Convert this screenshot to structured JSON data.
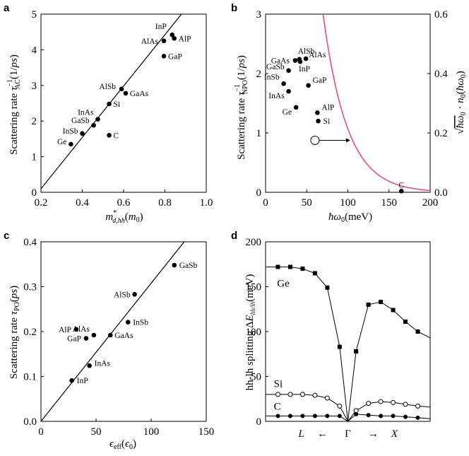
{
  "chart_data": [
    {
      "panel": "a",
      "type": "scatter",
      "xlabel": "m*_{d,hh}(m0)",
      "ylabel": "Scattering rate τ_AC^{-1}(1/ps)",
      "xlim": [
        0.2,
        1.0
      ],
      "ylim": [
        0,
        5
      ],
      "xticks": [
        "0.2",
        "0.4",
        "0.6",
        "0.8",
        "1.0"
      ],
      "yticks": [
        "0",
        "1",
        "2",
        "3",
        "4",
        "5"
      ],
      "fit_line": {
        "x": [
          0.2,
          0.88
        ],
        "y": [
          0.1,
          5.0
        ]
      },
      "points": [
        {
          "label": "InP",
          "x": 0.835,
          "y": 4.42
        },
        {
          "label": "AlP",
          "x": 0.845,
          "y": 4.32
        },
        {
          "label": "AlAs",
          "x": 0.795,
          "y": 4.25
        },
        {
          "label": "GaP",
          "x": 0.795,
          "y": 3.82
        },
        {
          "label": "AlSb",
          "x": 0.59,
          "y": 2.9
        },
        {
          "label": "GaAs",
          "x": 0.61,
          "y": 2.78
        },
        {
          "label": "Si",
          "x": 0.53,
          "y": 2.48
        },
        {
          "label": "InAs",
          "x": 0.475,
          "y": 2.05
        },
        {
          "label": "GaSb",
          "x": 0.455,
          "y": 1.88
        },
        {
          "label": "InSb",
          "x": 0.4,
          "y": 1.65
        },
        {
          "label": "C",
          "x": 0.53,
          "y": 1.6
        },
        {
          "label": "Ge",
          "x": 0.345,
          "y": 1.35
        }
      ]
    },
    {
      "panel": "b",
      "type": "scatter",
      "xlabel": "ħω0(meV)",
      "ylabel": "Scattering rate τ_NPO^{-1}(1/ps)",
      "ylabel_right": "√(ħω0)·n0(ħω0)",
      "xlim": [
        0,
        200
      ],
      "ylim": [
        0,
        3
      ],
      "ylim_right": [
        0,
        0.6
      ],
      "xticks": [
        "0",
        "50",
        "100",
        "150",
        "200"
      ],
      "yticks": [
        "0",
        "1",
        "2",
        "3"
      ],
      "yticks_right": [
        "0.0",
        "0.2",
        "0.4",
        "0.6"
      ],
      "curve": {
        "name": "√(ħω0)·n0(ħω0) at 300 K",
        "color": "#e8467c",
        "axis": "right"
      },
      "points": [
        {
          "label": "GaAs",
          "x": 36,
          "y": 2.22
        },
        {
          "label": "AlSb",
          "x": 41,
          "y": 2.24
        },
        {
          "label": "AlAs",
          "x": 49,
          "y": 2.25
        },
        {
          "label": "InP",
          "x": 42,
          "y": 2.2
        },
        {
          "label": "GaSb",
          "x": 28,
          "y": 2.05
        },
        {
          "label": "InSb",
          "x": 22,
          "y": 1.83
        },
        {
          "label": "GaP",
          "x": 52,
          "y": 1.8
        },
        {
          "label": "InAs",
          "x": 28,
          "y": 1.7
        },
        {
          "label": "Ge",
          "x": 37,
          "y": 1.43
        },
        {
          "label": "AlP",
          "x": 63,
          "y": 1.34
        },
        {
          "label": "Si",
          "x": 64,
          "y": 1.2
        },
        {
          "label": "C",
          "x": 165,
          "y": 0.02
        }
      ]
    },
    {
      "panel": "c",
      "type": "scatter",
      "xlabel": "ε_eff(ε0)",
      "ylabel": "Scattering rate τ_PO(ps)",
      "xlim": [
        0,
        150
      ],
      "ylim": [
        0,
        0.4
      ],
      "xticks": [
        "0",
        "50",
        "100",
        "150"
      ],
      "yticks": [
        "0.0",
        "0.1",
        "0.2",
        "0.3",
        "0.4"
      ],
      "fit_line": {
        "x": [
          0,
          130
        ],
        "y": [
          0.0,
          0.4
        ]
      },
      "points": [
        {
          "label": "GaSb",
          "x": 121,
          "y": 0.348
        },
        {
          "label": "AlSb",
          "x": 85,
          "y": 0.283
        },
        {
          "label": "InSb",
          "x": 79,
          "y": 0.221
        },
        {
          "label": "AlP",
          "x": 32,
          "y": 0.205
        },
        {
          "label": "AlAs",
          "x": 48,
          "y": 0.192
        },
        {
          "label": "GaAs",
          "x": 63,
          "y": 0.192
        },
        {
          "label": "GaP",
          "x": 41,
          "y": 0.185
        },
        {
          "label": "InAs",
          "x": 44,
          "y": 0.124
        },
        {
          "label": "InP",
          "x": 28,
          "y": 0.091
        }
      ]
    },
    {
      "panel": "d",
      "type": "line",
      "xlabel": "L ← Γ → X",
      "ylabel": "hh-lh splitting ΔE_hh/lh(meV)",
      "xlim": [
        -1,
        1
      ],
      "ylim": [
        0,
        200
      ],
      "yticks": [
        "0",
        "50",
        "100",
        "150",
        "200"
      ],
      "series": [
        {
          "name": "Ge",
          "marker": "square",
          "x": [
            -1,
            -0.85,
            -0.7,
            -0.55,
            -0.4,
            -0.25,
            -0.1,
            0,
            0.1,
            0.25,
            0.4,
            0.55,
            0.7,
            0.85,
            1
          ],
          "y": [
            172,
            172,
            172,
            170,
            165,
            149,
            83,
            0,
            78,
            130,
            133,
            124,
            111,
            100,
            93
          ]
        },
        {
          "name": "Si",
          "marker": "open-circle",
          "x": [
            -1,
            -0.85,
            -0.7,
            -0.55,
            -0.4,
            -0.25,
            -0.1,
            0,
            0.1,
            0.25,
            0.4,
            0.55,
            0.7,
            0.85,
            1
          ],
          "y": [
            30,
            30,
            30,
            30,
            29,
            26,
            17,
            0,
            12,
            20,
            22,
            21,
            19,
            17,
            16
          ]
        },
        {
          "name": "C",
          "marker": "filled-circle",
          "x": [
            -1,
            -0.85,
            -0.7,
            -0.55,
            -0.4,
            -0.25,
            -0.1,
            0,
            0.1,
            0.25,
            0.4,
            0.55,
            0.7,
            0.85,
            1
          ],
          "y": [
            6,
            6,
            6,
            6,
            6,
            6,
            6,
            0,
            8,
            7,
            6,
            6,
            5,
            4,
            3
          ]
        }
      ]
    }
  ],
  "panel_labels": [
    "a",
    "b",
    "c",
    "d"
  ],
  "x_direction": {
    "left": "L",
    "arrow_left": "←",
    "center": "Γ",
    "arrow_right": "→",
    "right": "X"
  },
  "colors": {
    "ink": "#000000",
    "curve": "#e8467c"
  }
}
